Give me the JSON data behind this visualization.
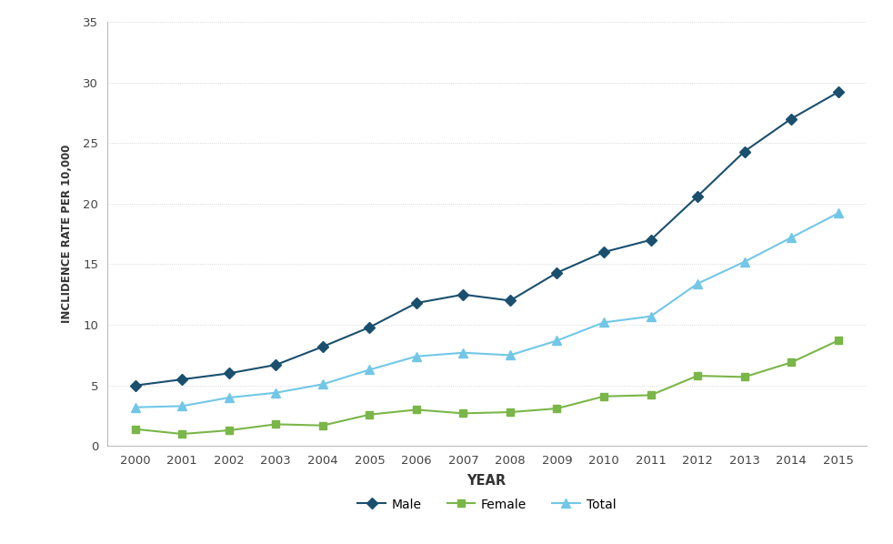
{
  "years": [
    2000,
    2001,
    2002,
    2003,
    2004,
    2005,
    2006,
    2007,
    2008,
    2009,
    2010,
    2011,
    2012,
    2013,
    2014,
    2015
  ],
  "male": [
    5.0,
    5.5,
    6.0,
    6.7,
    8.2,
    9.8,
    11.8,
    12.5,
    12.0,
    14.3,
    16.0,
    17.0,
    20.6,
    24.3,
    27.0,
    29.2
  ],
  "female": [
    1.4,
    1.0,
    1.3,
    1.8,
    1.7,
    2.6,
    3.0,
    2.7,
    2.8,
    3.1,
    4.1,
    4.2,
    5.8,
    5.7,
    6.9,
    8.7
  ],
  "total": [
    3.2,
    3.3,
    4.0,
    4.4,
    5.1,
    6.3,
    7.4,
    7.7,
    7.5,
    8.7,
    10.2,
    10.7,
    13.4,
    15.2,
    17.2,
    19.2
  ],
  "male_color": "#1a4f6e",
  "female_color": "#7ab648",
  "total_color": "#72c7e7",
  "xlabel": "YEAR",
  "ylabel": "INCLIDENCE RATE PER 10,000",
  "ylim": [
    0,
    35
  ],
  "yticks": [
    0,
    5,
    10,
    15,
    20,
    25,
    30,
    35
  ],
  "grid_color": "#cccccc",
  "background_color": "#ffffff",
  "marker_male": "D",
  "marker_female": "s",
  "marker_total": "^",
  "legend_labels": [
    "Male",
    "Female",
    "Total"
  ]
}
